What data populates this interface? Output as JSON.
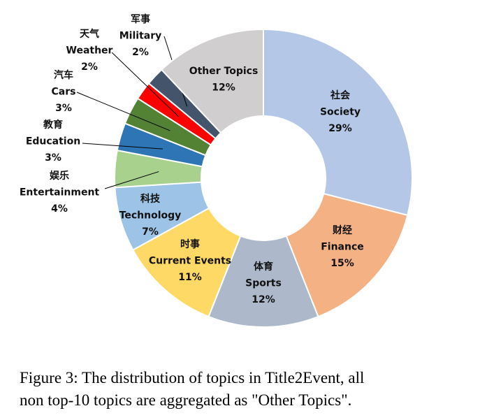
{
  "chart_data": {
    "type": "donut",
    "categories": [
      "Society",
      "Finance",
      "Sports",
      "Current Events",
      "Technology",
      "Entertainment",
      "Education",
      "Cars",
      "Weather",
      "Military",
      "Other Topics"
    ],
    "categories_zh": [
      "社会",
      "财经",
      "体育",
      "时事",
      "科技",
      "娱乐",
      "教育",
      "汽车",
      "天气",
      "军事",
      null
    ],
    "values": [
      29,
      15,
      12,
      11,
      7,
      4,
      3,
      3,
      2,
      2,
      12
    ],
    "value_labels": [
      "29%",
      "15%",
      "12%",
      "11%",
      "7%",
      "4%",
      "3%",
      "3%",
      "2%",
      "2%",
      "12%"
    ],
    "colors": [
      "#b4c7e7",
      "#f4b183",
      "#adb9ca",
      "#ffd966",
      "#9dc3e6",
      "#a9d18e",
      "#2e75b6",
      "#548235",
      "#ff0000",
      "#44546a",
      "#d0cece"
    ]
  },
  "caption": [
    "Figure 3: The distribution of topics in Title2Event, all",
    "non top-10 topics are aggregated as \"Other Topics\"."
  ]
}
